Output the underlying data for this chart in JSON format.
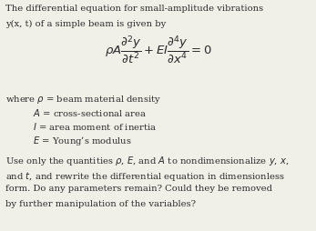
{
  "bg_color": "#f0efe8",
  "text_color": "#2a2a2a",
  "fig_width": 3.47,
  "fig_height": 2.54,
  "dpi": 100,
  "line1": "The differential equation for small-amplitude vibrations",
  "line2": "y(x, t) of a simple beam is given by",
  "where_line": "where $\\rho$ = beam material density",
  "def_A": "$A$ = cross-sectional area",
  "def_I": "$I$ = area moment of inertia",
  "def_E": "$E$ = Young’s modulus",
  "use_line1": "Use only the quantities $\\rho$, $E$, and $A$ to nondimensionalize $y$, $x$,",
  "use_line2": "and $t$, and rewrite the differential equation in dimensionless",
  "use_line3": "form. Do any parameters remain? Could they be removed",
  "use_line4": "by further manipulation of the variables?",
  "eq": "$\\rho A \\dfrac{\\partial^2 y}{\\partial t^2} + EI\\dfrac{\\partial^4 y}{\\partial x^4} = 0$"
}
